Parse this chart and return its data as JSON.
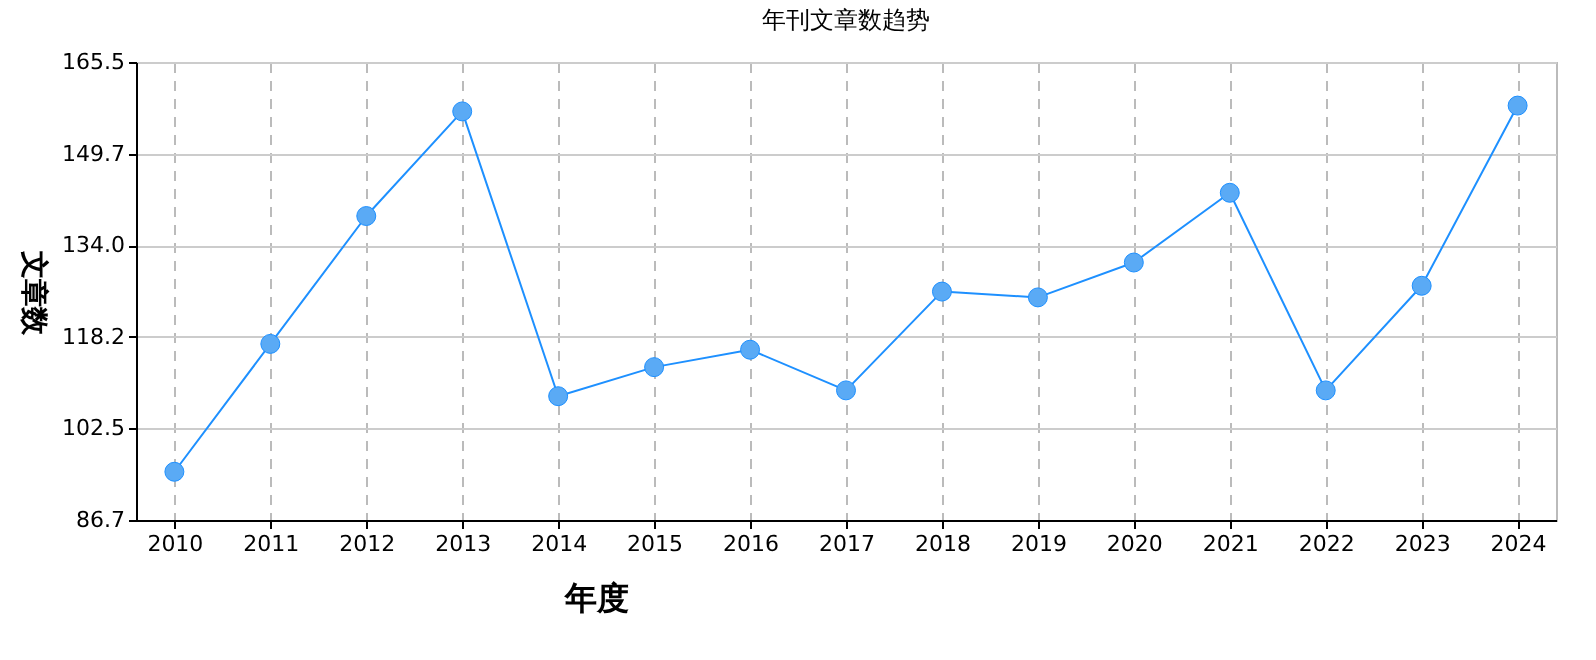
{
  "chart_data": {
    "type": "line",
    "title": "年刊文章数趋势",
    "xlabel": "年度",
    "ylabel": "文章数",
    "categories": [
      "2010",
      "2011",
      "2012",
      "2013",
      "2014",
      "2015",
      "2016",
      "2017",
      "2018",
      "2019",
      "2020",
      "2021",
      "2022",
      "2023",
      "2024"
    ],
    "series": [
      {
        "color": "#1e90ff",
        "values": [
          95,
          117,
          139,
          157,
          108,
          113,
          116,
          109,
          126,
          125,
          131,
          143,
          109,
          127,
          158
        ]
      }
    ],
    "ylim": [
      86.7,
      165.5
    ],
    "yticks": [
      86.7,
      102.5,
      118.2,
      {
        "value": 134,
        "label": "134.0"
      },
      149.7,
      165.5
    ],
    "grid": true,
    "marker": "circle",
    "line_style": "solid"
  }
}
